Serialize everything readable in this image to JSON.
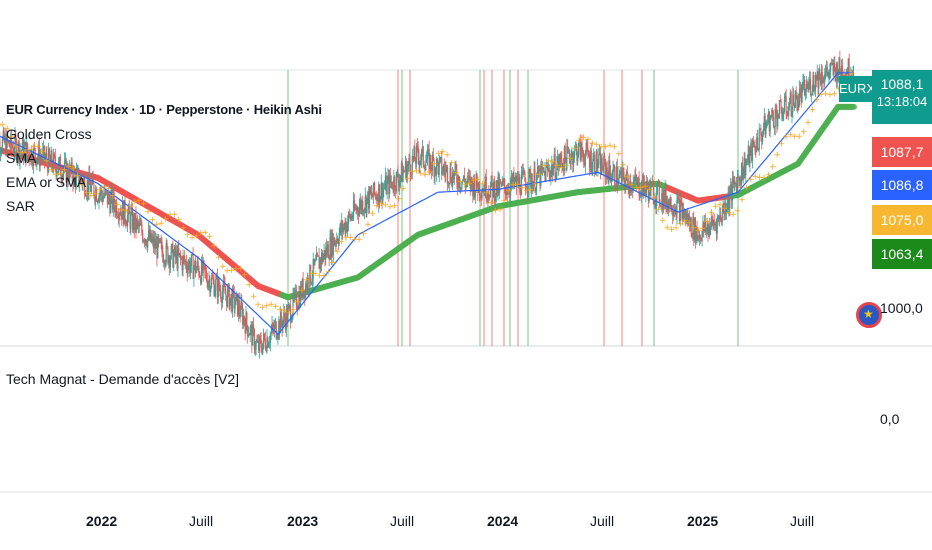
{
  "header": {
    "title": "EUR Currency Index · 1D · Pepperstone · Heikin Ashi",
    "indicators": [
      "Golden Cross",
      "SMA",
      "EMA or SMA",
      "SAR"
    ]
  },
  "ticker_badge": "EURX",
  "price_labels": {
    "last": "1088,1",
    "countdown": "13:18:04",
    "red": "1087,7",
    "blue": "1086,8",
    "orange": "1075,0",
    "green": "1063,4",
    "axis_1000": "1000,0"
  },
  "lower_pane": {
    "name": "Tech Magnat - Demande d'accès [V2]",
    "value": "0,0"
  },
  "x_axis": [
    {
      "label": "2022",
      "bold": true
    },
    {
      "label": "Juill",
      "bold": false
    },
    {
      "label": "2023",
      "bold": true
    },
    {
      "label": "Juill",
      "bold": false
    },
    {
      "label": "2024",
      "bold": true
    },
    {
      "label": "Juill",
      "bold": false
    },
    {
      "label": "2025",
      "bold": true
    },
    {
      "label": "Juill",
      "bold": false
    }
  ],
  "colors": {
    "up": "#26a69a",
    "down": "#ef5350",
    "sma_fast": "#2962ff",
    "ma_slow_bear": "#ef5350",
    "ma_slow_bull": "#4caf50",
    "sar": "#f7a51c",
    "signal_buy": "#4caf50",
    "signal_sell": "#ef5350",
    "badge": "#0f9b8e",
    "label_red": "#ef5350",
    "label_blue": "#2962ff",
    "label_orange": "#f7b731",
    "label_green": "#1b8a1b"
  },
  "chart_data": {
    "type": "line",
    "title": "EUR Currency Index · 1D · Pepperstone · Heikin Ashi",
    "x_ticks": [
      "2022",
      "Juill",
      "2023",
      "Juill",
      "2024",
      "Juill",
      "2025",
      "Juill"
    ],
    "y_reference": 1000.0,
    "series": [
      {
        "name": "EUR Currency Index",
        "t": [
          2021.5,
          2021.7,
          2021.9,
          2022.1,
          2022.3,
          2022.5,
          2022.7,
          2022.8,
          2022.95,
          2023.1,
          2023.3,
          2023.5,
          2023.6,
          2023.75,
          2023.85,
          2024.0,
          2024.2,
          2024.4,
          2024.5,
          2024.6,
          2024.75,
          2024.9,
          2025.0,
          2025.1,
          2025.2,
          2025.35,
          2025.5,
          2025.6,
          2025.7
        ],
        "values": [
          1063,
          1058,
          1050,
          1040,
          1025,
          1018,
          1005,
          990,
          1002,
          1020,
          1040,
          1050,
          1058,
          1052,
          1048,
          1046,
          1050,
          1060,
          1055,
          1050,
          1046,
          1040,
          1030,
          1035,
          1050,
          1070,
          1078,
          1086,
          1088
        ]
      },
      {
        "name": "SMA",
        "t": [
          2021.5,
          2022.0,
          2022.5,
          2022.9,
          2023.3,
          2023.7,
          2024.0,
          2024.5,
          2024.9,
          2025.2,
          2025.7
        ],
        "values": [
          1065,
          1048,
          1022,
          995,
          1030,
          1045,
          1046,
          1052,
          1038,
          1045,
          1087
        ]
      },
      {
        "name": "EMA or SMA",
        "t": [
          2021.5,
          2022.0,
          2022.5,
          2022.8,
          2022.95,
          2023.3,
          2023.6,
          2024.0,
          2024.4,
          2024.8,
          2025.0,
          2025.2,
          2025.5,
          2025.7
        ],
        "values": [
          1060,
          1050,
          1030,
          1012,
          1008,
          1015,
          1030,
          1040,
          1045,
          1048,
          1042,
          1044,
          1055,
          1075
        ]
      },
      {
        "name": "SAR",
        "t": [
          2021.5,
          2022.0,
          2022.5,
          2022.9,
          2023.3,
          2023.7,
          2024.0,
          2024.5,
          2024.9,
          2025.2,
          2025.7
        ],
        "values": [
          1066,
          1044,
          1030,
          1000,
          1030,
          1057,
          1040,
          1064,
          1030,
          1040,
          1083
        ]
      }
    ],
    "signals_buy_t": [
      2022.95,
      2023.52,
      2023.91,
      2024.06,
      2024.15,
      2024.78,
      2025.2
    ],
    "signals_sell_t": [
      2023.5,
      2023.56,
      2023.93,
      2023.97,
      2024.03,
      2024.1,
      2024.53,
      2024.62,
      2024.72
    ]
  }
}
